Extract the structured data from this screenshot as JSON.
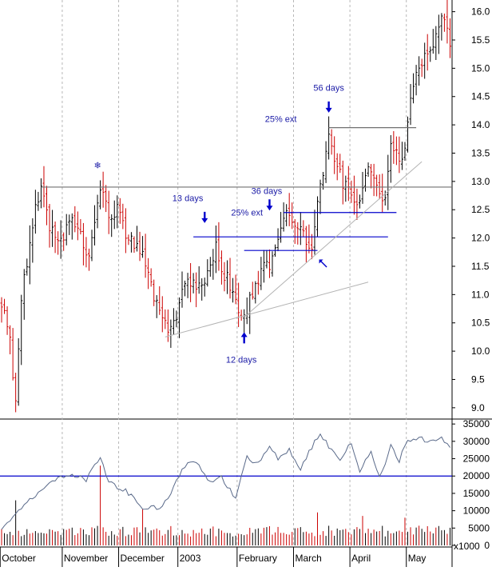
{
  "chart_data": [
    {
      "type": "candlestick",
      "title": "",
      "xlabel": "",
      "ylabel": "",
      "grid": "vertical dashed at month boundaries",
      "ylim": [
        8.8,
        16.15
      ],
      "y_ticks": [
        "9.0",
        "9.5",
        "10.0",
        "10.5",
        "11.0",
        "11.5",
        "12.0",
        "12.5",
        "13.0",
        "13.5",
        "14.0",
        "14.5",
        "15.0",
        "15.5",
        "16.0"
      ],
      "x_labels": [
        "October",
        "November",
        "December",
        "2003",
        "February",
        "March",
        "April",
        "May"
      ],
      "month_start_bar": [
        0,
        22,
        42,
        63,
        84,
        104,
        124,
        144
      ],
      "bar_count": 160,
      "colors": {
        "up": "#000000",
        "down": "#cc0000"
      },
      "price_path": [
        [
          0,
          10.8
        ],
        [
          3,
          10.2
        ],
        [
          5,
          9.1
        ],
        [
          7,
          10.9
        ],
        [
          9,
          11.6
        ],
        [
          12,
          12.5
        ],
        [
          14,
          12.85
        ],
        [
          17,
          12.2
        ],
        [
          21,
          11.9
        ],
        [
          25,
          12.4
        ],
        [
          28,
          12.0
        ],
        [
          31,
          11.7
        ],
        [
          34,
          12.6
        ],
        [
          36,
          12.9
        ],
        [
          38,
          12.3
        ],
        [
          41,
          12.5
        ],
        [
          43,
          12.2
        ],
        [
          47,
          11.85
        ],
        [
          50,
          11.65
        ],
        [
          54,
          11.0
        ],
        [
          57,
          10.7
        ],
        [
          59,
          10.4
        ],
        [
          61,
          10.45
        ],
        [
          64,
          11.0
        ],
        [
          66,
          11.25
        ],
        [
          69,
          11.1
        ],
        [
          73,
          11.4
        ],
        [
          76,
          11.85
        ],
        [
          78,
          11.4
        ],
        [
          81,
          11.2
        ],
        [
          84,
          10.8
        ],
        [
          86,
          10.65
        ],
        [
          89,
          11.0
        ],
        [
          93,
          11.45
        ],
        [
          96,
          11.6
        ],
        [
          99,
          12.1
        ],
        [
          101,
          12.4
        ],
        [
          104,
          12.15
        ],
        [
          107,
          12.05
        ],
        [
          110,
          11.8
        ],
        [
          112,
          12.6
        ],
        [
          114,
          13.2
        ],
        [
          116,
          13.85
        ],
        [
          118,
          13.3
        ],
        [
          121,
          13.0
        ],
        [
          124,
          12.8
        ],
        [
          127,
          12.65
        ],
        [
          130,
          13.15
        ],
        [
          133,
          12.85
        ],
        [
          136,
          12.75
        ],
        [
          138,
          13.6
        ],
        [
          140,
          13.6
        ],
        [
          142,
          13.3
        ],
        [
          144,
          14.0
        ],
        [
          146,
          14.7
        ],
        [
          148,
          15.0
        ],
        [
          150,
          15.2
        ],
        [
          152,
          15.3
        ],
        [
          154,
          15.7
        ],
        [
          156,
          15.95
        ],
        [
          159,
          15.5
        ]
      ],
      "horizontal_lines": [
        {
          "y": 12.9,
          "from_bar": 14,
          "to_bar": 160,
          "color": "#707070"
        },
        {
          "y": 13.95,
          "from_bar": 116,
          "to_bar": 147,
          "color": "#707070"
        },
        {
          "y": 12.45,
          "from_bar": 100,
          "to_bar": 140,
          "color": "#0000cc"
        },
        {
          "y": 12.02,
          "from_bar": 68,
          "to_bar": 137,
          "color": "#0000cc"
        },
        {
          "y": 11.78,
          "from_bar": 86,
          "to_bar": 112,
          "color": "#0000cc"
        }
      ],
      "trend_lines": [
        {
          "from": [
            58,
            10.25
          ],
          "to": [
            130,
            11.22
          ]
        },
        {
          "from": [
            86,
            10.6
          ],
          "to": [
            149,
            13.35
          ]
        }
      ],
      "annotations": [
        {
          "text": "13 days",
          "bar": 66,
          "y": 12.65
        },
        {
          "text": "36 days",
          "bar": 94,
          "y": 12.78
        },
        {
          "text": "25% ext",
          "bar": 87,
          "y": 12.4
        },
        {
          "text": "25% ext",
          "bar": 99,
          "y": 14.05
        },
        {
          "text": "56 days",
          "bar": 116,
          "y": 14.6
        },
        {
          "text": "12 days",
          "bar": 85,
          "y": 9.8
        }
      ],
      "arrows": [
        {
          "direction": "down",
          "bar": 72,
          "y": 12.35
        },
        {
          "direction": "down",
          "bar": 95,
          "y": 12.57
        },
        {
          "direction": "down",
          "bar": 116,
          "y": 14.3
        },
        {
          "direction": "up",
          "bar": 86,
          "y": 10.25
        },
        {
          "direction": "up-left",
          "bar": 114,
          "y": 11.55
        }
      ],
      "glyph_marker": {
        "text": "❄",
        "bar": 34,
        "y": 13.23
      }
    },
    {
      "type": "volume",
      "ylabel": "",
      "unit_label": "x1000",
      "ylim": [
        0,
        35500
      ],
      "y_ticks": [
        "0",
        "5000",
        "10000",
        "15000",
        "20000",
        "25000",
        "30000",
        "35000"
      ],
      "reference_line": 20000,
      "spikes": [
        {
          "bar": 5,
          "value": 13000
        },
        {
          "bar": 35,
          "value": 23000
        },
        {
          "bar": 50,
          "value": 10500
        },
        {
          "bar": 112,
          "value": 9500
        },
        {
          "bar": 128,
          "value": 8500
        },
        {
          "bar": 143,
          "value": 8000
        }
      ],
      "ma_path": [
        [
          0,
          4000
        ],
        [
          6,
          10000
        ],
        [
          12,
          14500
        ],
        [
          18,
          18500
        ],
        [
          24,
          20500
        ],
        [
          30,
          19000
        ],
        [
          35,
          25500
        ],
        [
          38,
          18000
        ],
        [
          44,
          16000
        ],
        [
          50,
          10500
        ],
        [
          57,
          11000
        ],
        [
          63,
          20000
        ],
        [
          66,
          24500
        ],
        [
          69,
          24000
        ],
        [
          73,
          18500
        ],
        [
          78,
          19500
        ],
        [
          83,
          13500
        ],
        [
          87,
          25500
        ],
        [
          91,
          23500
        ],
        [
          95,
          28000
        ],
        [
          98,
          25000
        ],
        [
          102,
          27500
        ],
        [
          106,
          22000
        ],
        [
          109,
          27000
        ],
        [
          113,
          32500
        ],
        [
          116,
          28500
        ],
        [
          120,
          25000
        ],
        [
          124,
          30000
        ],
        [
          127,
          21000
        ],
        [
          131,
          27500
        ],
        [
          134,
          19500
        ],
        [
          138,
          28500
        ],
        [
          141,
          24500
        ],
        [
          144,
          30500
        ],
        [
          148,
          31000
        ],
        [
          152,
          30000
        ],
        [
          156,
          31500
        ],
        [
          159,
          28000
        ]
      ]
    }
  ]
}
